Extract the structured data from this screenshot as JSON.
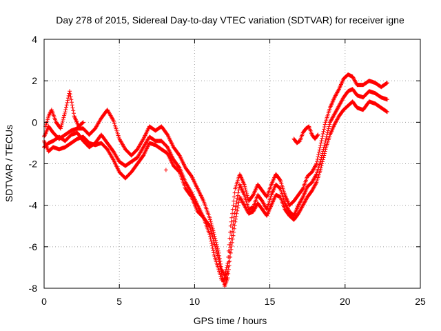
{
  "chart_data": {
    "type": "scatter",
    "title": "Day 278 of 2015, Sidereal Day-to-day VTEC variation (SDTVAR) for receiver igne",
    "xlabel": "GPS time / hours",
    "ylabel": "SDTVAR / TECUs",
    "xlim": [
      0,
      25
    ],
    "ylim": [
      -8,
      4
    ],
    "xticks": [
      "0",
      "5",
      "10",
      "15",
      "20",
      "25"
    ],
    "yticks": [
      "4",
      "2",
      "0",
      "-2",
      "-4",
      "-6",
      "-8"
    ],
    "grid": true,
    "marker": "+",
    "color": "#ff0000",
    "series": [
      {
        "x": [
          0,
          0.3,
          0.6,
          1.0,
          1.4,
          1.8,
          2.2,
          2.6,
          3.0,
          3.4,
          3.8,
          4.2,
          4.6,
          5.0,
          5.4,
          5.8,
          6.2,
          6.6,
          7.0,
          7.4,
          7.8,
          8.2,
          8.6,
          9.0,
          9.4,
          9.8,
          10.2,
          10.6,
          11.0,
          11.3,
          11.6,
          11.8,
          12.0,
          12.2,
          12.4,
          12.7,
          13.0,
          13.3,
          13.6,
          13.9,
          14.2,
          14.5,
          14.8,
          15.1,
          15.4,
          15.7,
          16.0,
          16.3,
          16.6,
          16.9,
          17.2,
          17.5,
          17.8,
          18.1,
          18.4,
          18.7,
          19.0,
          19.3,
          19.6,
          19.9,
          20.2,
          20.5,
          20.8,
          21.2,
          21.6,
          22.0,
          22.4,
          22.8
        ],
        "values": [
          -0.7,
          -0.2,
          -0.5,
          -0.8,
          -0.6,
          -0.4,
          -0.3,
          -0.3,
          -0.6,
          -0.3,
          0.2,
          0.6,
          0.1,
          -0.8,
          -1.3,
          -1.6,
          -1.3,
          -0.8,
          -0.2,
          -0.4,
          -0.2,
          -0.6,
          -1.2,
          -1.6,
          -2.2,
          -2.6,
          -3.2,
          -3.8,
          -4.6,
          -5.4,
          -6.3,
          -7.1,
          -7.4,
          -6.8,
          -5.0,
          -3.2,
          -2.5,
          -3.0,
          -3.8,
          -3.5,
          -3.0,
          -3.3,
          -3.6,
          -3.0,
          -2.5,
          -2.8,
          -3.5,
          -4.0,
          -3.8,
          -3.5,
          -3.2,
          -2.6,
          -2.4,
          -2.0,
          -1.0,
          0.0,
          0.7,
          1.2,
          1.6,
          2.1,
          2.3,
          2.2,
          1.8,
          1.8,
          2.0,
          1.9,
          1.7,
          1.9
        ]
      },
      {
        "x": [
          0,
          0.3,
          0.6,
          1.0,
          1.4,
          1.8,
          2.2,
          2.6,
          3.0,
          3.4,
          3.8,
          4.2,
          4.6,
          5.0,
          5.4,
          5.8,
          6.2,
          6.6,
          7.0,
          7.4,
          7.8,
          8.2,
          8.6,
          9.0,
          9.4,
          9.8,
          10.2,
          10.6,
          11.0,
          11.3,
          11.6,
          11.8,
          12.0,
          12.2,
          12.4,
          12.7,
          13.0,
          13.3,
          13.6,
          13.9,
          14.2,
          14.5,
          14.8,
          15.1,
          15.4,
          15.7,
          16.0,
          16.3,
          16.6,
          16.9,
          17.2,
          17.5,
          17.8,
          18.1,
          18.4,
          18.7,
          19.0,
          19.3,
          19.6,
          19.9,
          20.2,
          20.5,
          20.8,
          21.2,
          21.6,
          22.0,
          22.4,
          22.8
        ],
        "values": [
          -1.2,
          -1.0,
          -0.9,
          -0.7,
          -0.9,
          -0.6,
          -0.5,
          -0.9,
          -1.2,
          -1.0,
          -0.6,
          -1.0,
          -1.4,
          -1.9,
          -2.1,
          -1.9,
          -1.7,
          -1.2,
          -0.7,
          -0.9,
          -0.9,
          -1.2,
          -1.8,
          -2.2,
          -2.9,
          -3.4,
          -4.0,
          -4.6,
          -5.4,
          -6.4,
          -7.1,
          -7.6,
          -7.6,
          -7.2,
          -5.8,
          -4.2,
          -3.0,
          -3.5,
          -4.2,
          -4.1,
          -3.5,
          -3.8,
          -4.2,
          -3.5,
          -3.0,
          -3.2,
          -3.9,
          -4.3,
          -4.5,
          -4.0,
          -3.6,
          -3.1,
          -2.9,
          -2.5,
          -1.8,
          -0.9,
          0.0,
          0.4,
          0.8,
          1.2,
          1.5,
          1.6,
          1.3,
          1.2,
          1.5,
          1.4,
          1.2,
          1.1
        ]
      },
      {
        "x": [
          0,
          0.3,
          0.6,
          1.0,
          1.4,
          1.8,
          2.2,
          2.6,
          3.0,
          3.4,
          3.8,
          4.2,
          4.6,
          5.0,
          5.4,
          5.8,
          6.2,
          6.6,
          7.0,
          7.4,
          7.8,
          8.2,
          8.6,
          9.0,
          9.4,
          9.8,
          10.2,
          10.6,
          11.0,
          11.3,
          11.6,
          11.8,
          12.0,
          12.2,
          12.4,
          12.7,
          13.0,
          13.3,
          13.6,
          13.9,
          14.2,
          14.5,
          14.8,
          15.1,
          15.4,
          15.7,
          16.0,
          16.3,
          16.6,
          16.9,
          17.2,
          17.5,
          17.8,
          18.1,
          18.4,
          18.7,
          19.0,
          19.3,
          19.6,
          19.9,
          20.2,
          20.5,
          20.8,
          21.2,
          21.6,
          22.0,
          22.4,
          22.8
        ],
        "values": [
          -0.9,
          -1.4,
          -1.2,
          -1.3,
          -1.2,
          -1.0,
          -0.8,
          -0.7,
          -1.0,
          -1.1,
          -1.0,
          -1.3,
          -1.8,
          -2.4,
          -2.7,
          -2.4,
          -2.0,
          -1.6,
          -1.0,
          -1.1,
          -1.3,
          -1.5,
          -2.1,
          -2.4,
          -3.2,
          -3.6,
          -4.3,
          -4.6,
          -5.0,
          -5.8,
          -6.6,
          -7.3,
          -7.9,
          -7.5,
          -6.3,
          -4.8,
          -3.6,
          -4.0,
          -4.4,
          -4.3,
          -3.9,
          -4.2,
          -4.5,
          -4.0,
          -3.5,
          -3.6,
          -4.2,
          -4.5,
          -4.7,
          -4.4,
          -4.0,
          -3.6,
          -3.3,
          -2.9,
          -2.2,
          -1.3,
          -0.6,
          -0.1,
          0.3,
          0.6,
          0.8,
          1.0,
          0.7,
          0.6,
          1.0,
          0.9,
          0.7,
          0.5
        ]
      },
      {
        "x": [
          0.1,
          0.3,
          0.5,
          0.8,
          1.1,
          1.4,
          1.7,
          2.0,
          2.3,
          2.6
        ],
        "values": [
          -0.2,
          0.3,
          0.6,
          0.0,
          -0.3,
          0.5,
          1.5,
          0.3,
          -0.2,
          0.0
        ]
      },
      {
        "x": [
          16.6,
          16.8,
          17.0,
          17.2,
          17.4,
          17.6,
          17.8,
          18.0,
          18.2
        ],
        "values": [
          -0.8,
          -1.0,
          -0.9,
          -0.5,
          -0.3,
          -0.2,
          -0.6,
          -0.8,
          -0.6
        ]
      },
      {
        "x": [
          8.1
        ],
        "values": [
          -2.3
        ]
      }
    ]
  }
}
